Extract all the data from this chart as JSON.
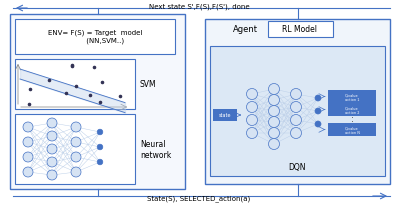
{
  "title_top": "Next state S',F(S),F(S'), done",
  "title_bottom": "State(S), SELECTED_action(a)",
  "env_title": "ENV= F(S) = Target  model\n         (NN,SVM..)",
  "svm_label": "SVM",
  "nn_label": "Neural\nnetwork",
  "agent_label": "Agent",
  "rl_model_label": "RL Model",
  "dqn_label": "DQN",
  "state_label": "state",
  "action_labels": [
    "Q-value\naction 1",
    "Q-value\naction 2",
    "Q-value\naction N"
  ],
  "box_color_blue": "#4472c4",
  "box_color_light": "#bdd0e9",
  "node_color_large": "#d6e3f3",
  "node_color_small": "#4472c4",
  "bg_color": "#ffffff",
  "arrow_color": "#4472c4",
  "dqn_bg": "#dce8f5",
  "env_bg": "#f5f8fd",
  "agent_bg": "#f0f5fb"
}
